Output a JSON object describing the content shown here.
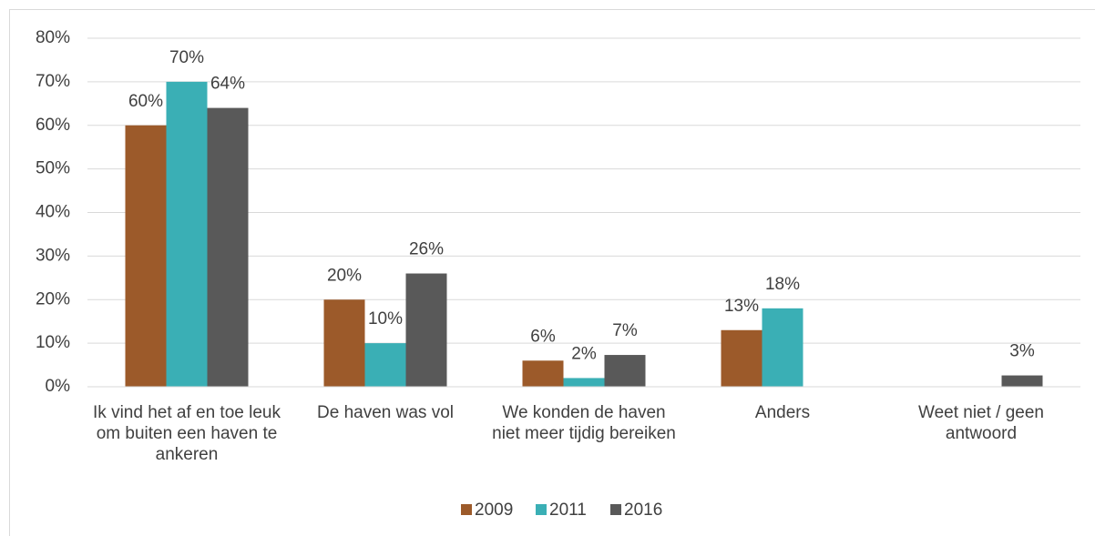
{
  "chart_data": {
    "type": "bar",
    "categories": [
      "Ik vind het af en toe leuk om buiten een haven te ankeren",
      "De haven was vol",
      "We konden de haven niet meer tijdig bereiken",
      "Anders",
      "Weet niet / geen antwoord"
    ],
    "series": [
      {
        "name": "2009",
        "color": "#9c5a2a",
        "values": [
          60,
          20,
          6,
          13,
          null
        ],
        "value_labels": [
          "60%",
          "20%",
          "6%",
          "13%",
          null
        ]
      },
      {
        "name": "2011",
        "color": "#3aafb5",
        "values": [
          70,
          10,
          2,
          18,
          null
        ],
        "value_labels": [
          "70%",
          "10%",
          "2%",
          "18%",
          null
        ]
      },
      {
        "name": "2016",
        "color": "#595959",
        "values": [
          64,
          26,
          7.3,
          null,
          2.6
        ],
        "value_labels": [
          "64%",
          "26%",
          "7%",
          null,
          "3%"
        ]
      }
    ],
    "ylim": [
      0,
      80
    ],
    "yticks": [
      {
        "value": 0,
        "label": "0%"
      },
      {
        "value": 10,
        "label": "10%"
      },
      {
        "value": 20,
        "label": "20%"
      },
      {
        "value": 30,
        "label": "30%"
      },
      {
        "value": 40,
        "label": "40%"
      },
      {
        "value": 50,
        "label": "50%"
      },
      {
        "value": 60,
        "label": "60%"
      },
      {
        "value": 70,
        "label": "70%"
      },
      {
        "value": 80,
        "label": "80%"
      }
    ],
    "grid": true,
    "legend": "bottom"
  }
}
